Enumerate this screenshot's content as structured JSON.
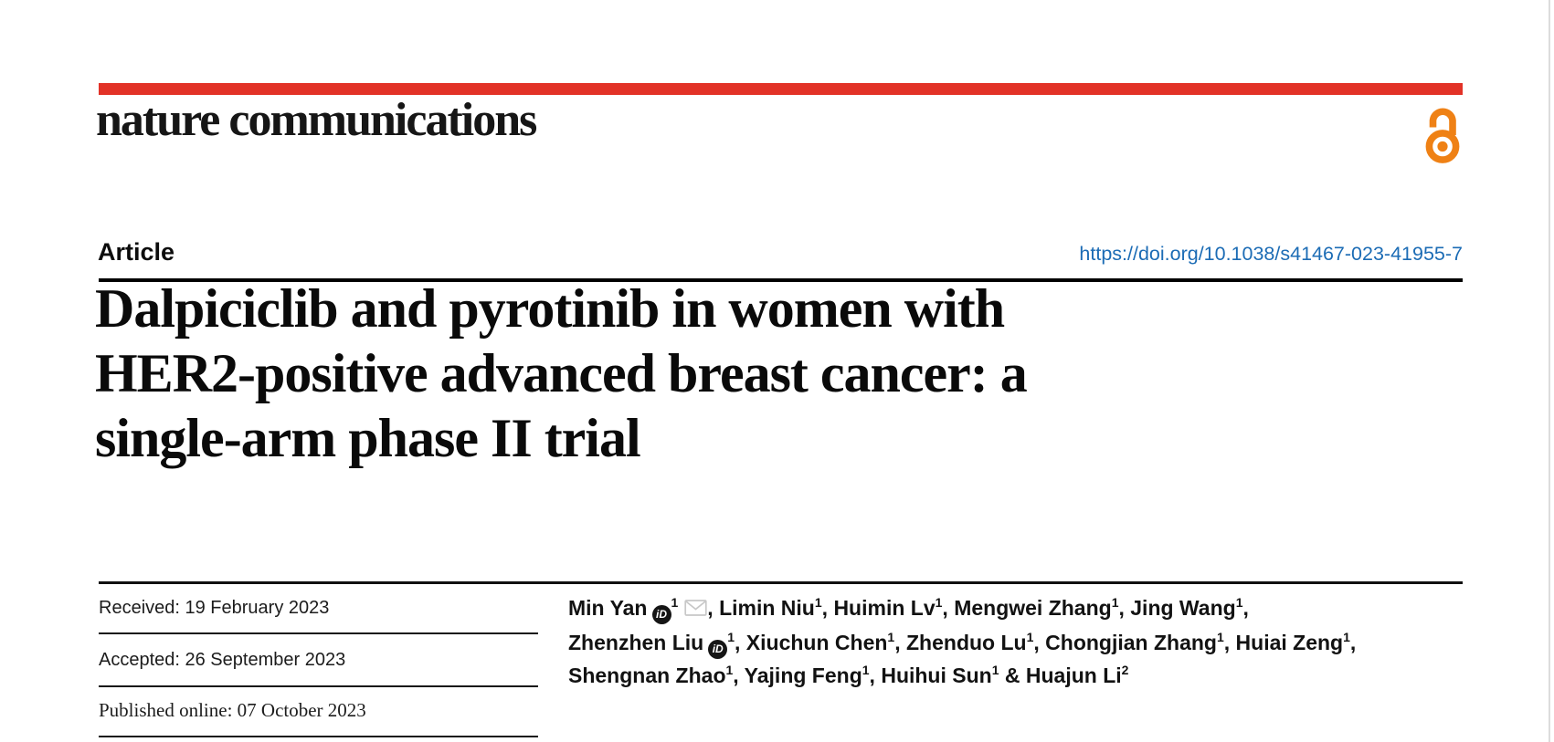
{
  "colors": {
    "brand_red": "#e23227",
    "oa_orange": "#ef8115",
    "link_blue": "#1c6cb5",
    "envelope_gray": "#c8c8c8"
  },
  "masthead": {
    "brand": "nature communications",
    "oa_icon_name": "open-access-icon"
  },
  "article_row": {
    "label": "Article",
    "doi": "https://doi.org/10.1038/s41467-023-41955-7"
  },
  "title_lines": [
    "Dalpiciclib and pyrotinib in women with",
    "HER2-positive advanced breast cancer: a",
    "single-arm phase II trial"
  ],
  "dates": {
    "received": "Received: 19 February 2023",
    "accepted": "Accepted: 26 September 2023",
    "published": "Published online: 07 October 2023"
  },
  "icons": {
    "orcid_label": "iD"
  },
  "authors": {
    "lines": [
      [
        {
          "name": "Min Yan",
          "orcid": true,
          "sup": "1",
          "envelope": true,
          "sep": ", "
        },
        {
          "name": "Limin Niu",
          "sup": "1",
          "sep": ", "
        },
        {
          "name": "Huimin Lv",
          "sup": "1",
          "sep": ", "
        },
        {
          "name": "Mengwei Zhang",
          "sup": "1",
          "sep": ", "
        },
        {
          "name": "Jing Wang",
          "sup": "1",
          "sep": ","
        }
      ],
      [
        {
          "name": "Zhenzhen Liu",
          "orcid": true,
          "sup": "1",
          "sep": ", "
        },
        {
          "name": "Xiuchun Chen",
          "sup": "1",
          "sep": ", "
        },
        {
          "name": "Zhenduo Lu",
          "sup": "1",
          "sep": ", "
        },
        {
          "name": "Chongjian Zhang",
          "sup": "1",
          "sep": ", "
        },
        {
          "name": "Huiai Zeng",
          "sup": "1",
          "sep": ","
        }
      ],
      [
        {
          "name": "Shengnan Zhao",
          "sup": "1",
          "sep": ", "
        },
        {
          "name": "Yajing Feng",
          "sup": "1",
          "sep": ", "
        },
        {
          "name": "Huihui Sun",
          "sup": "1",
          "sep": " & "
        },
        {
          "name": "Huajun Li",
          "sup": "2",
          "sep": ""
        }
      ]
    ]
  }
}
